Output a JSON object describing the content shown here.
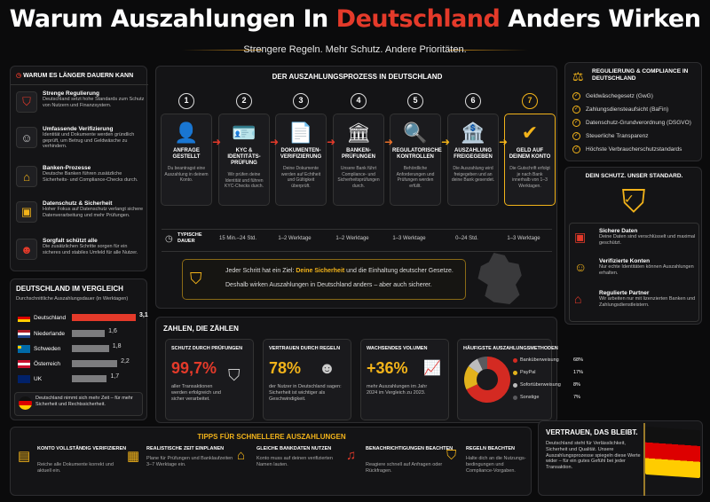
{
  "header": {
    "title_a": "Warum Auszahlungen In ",
    "title_b": "Deutschland",
    "title_c": " Anders Wirken",
    "subtitle": "Strengere Regeln. Mehr Schutz. Andere Prioritäten."
  },
  "left": {
    "title": "WARUM ES LÄNGER DAUERN KANN",
    "items": [
      {
        "icon": "shield-icon",
        "title": "Strenge Regulierung",
        "text": "Deutschland setzt hohe Standards zum Schutz von Nutzern und Finanzsystem."
      },
      {
        "icon": "id-check-icon",
        "title": "Umfassende Verifizierung",
        "text": "Identität und Dokumente werden gründlich geprüft, um Betrug und Geldwäsche zu verhindern."
      },
      {
        "icon": "bank-icon",
        "title": "Banken-Prozesse",
        "text": "Deutsche Banken führen zusätzliche Sicherheits- und Compliance-Checks durch."
      },
      {
        "icon": "lock-icon",
        "title": "Datenschutz & Sicherheit",
        "text": "Hoher Fokus auf Datenschutz verlangt sichere Datenverarbeitung und mehr Prüfungen."
      },
      {
        "icon": "people-icon",
        "title": "Sorgfalt schützt alle",
        "text": "Die zusätzlichen Schritte sorgen für ein sicheres und stabiles Umfeld für alle Nutzer."
      }
    ]
  },
  "process": {
    "title": "DER AUSZAHLUNGSPROZESS IN DEUTSCHLAND",
    "time_label": "TYPISCHE DAUER",
    "steps": [
      {
        "num": "1",
        "label": "ANFRAGE GESTELLT",
        "text": "Du beantragst eine Auszahlung in deinem Konto.",
        "time": "",
        "icon": "user-icon"
      },
      {
        "num": "2",
        "label": "KYC & IDENTITÄTS-PRÜFUNG",
        "text": "Wir prüfen deine Identität und führen KYC-Checks durch.",
        "time": "15 Min.–24 Std.",
        "icon": "id-card-icon"
      },
      {
        "num": "3",
        "label": "DOKUMENTEN-VERIFIZIERUNG",
        "text": "Deine Dokumente werden auf Echtheit und Gültigkeit überprüft.",
        "time": "1–2 Werktage",
        "icon": "document-icon"
      },
      {
        "num": "4",
        "label": "BANKEN-PRÜFUNGEN",
        "text": "Unsere Bank führt Compliance- und Sicherheitsprüfungen durch.",
        "time": "1–2 Werktage",
        "icon": "bank-icon"
      },
      {
        "num": "5",
        "label": "REGULATORISCHE KONTROLLEN",
        "text": "Behördliche Anforderungen und Prüfungen werden erfüllt.",
        "time": "1–3 Werktage",
        "icon": "search-icon"
      },
      {
        "num": "6",
        "label": "AUSZAHLUNG FREIGEGEBEN",
        "text": "Die Auszahlung wird freigegeben und an deine Bank gesendet.",
        "time": "0–24 Std.",
        "icon": "bank-check-icon"
      },
      {
        "num": "7",
        "label": "GELD AUF DEINEM KONTO",
        "text": "Die Gutschrift erfolgt je nach Bank innerhalb von 1–3 Werktagen.",
        "time": "1–3 Werktage",
        "icon": "check-circle-icon"
      }
    ],
    "note_a": "Jeder Schritt hat ein Ziel: ",
    "note_b": "Deine Sicherheit",
    "note_c": " und die Einhaltung deutscher Gesetze.",
    "note_line2": "Deshalb wirken Auszahlungen in Deutschland anders – aber auch sicherer."
  },
  "compare": {
    "title": "DEUTSCHLAND IM VERGLEICH",
    "subtitle": "Durchschnittliche Auszahlungsdauer (in Werktagen)",
    "rows": [
      {
        "country": "Deutschland",
        "value": 3.1,
        "label": "3,1",
        "color": "#e43a2a"
      },
      {
        "country": "Niederlande",
        "value": 1.6,
        "label": "1,6",
        "color": "#7c7c7e"
      },
      {
        "country": "Schweden",
        "value": 1.8,
        "label": "1,8",
        "color": "#7c7c7e"
      },
      {
        "country": "Österreich",
        "value": 2.2,
        "label": "2,2",
        "color": "#7c7c7e"
      },
      {
        "country": "UK",
        "value": 1.7,
        "label": "1,7",
        "color": "#7c7c7e"
      }
    ],
    "footer": "Deutschland nimmt sich mehr Zeit – für mehr Sicherheit und Rechtssicherheit."
  },
  "stats": {
    "title": "ZAHLEN, DIE ZÄHLEN",
    "s1": {
      "title": "SCHUTZ DURCH PRÜFUNGEN",
      "value": "99,7%",
      "text": "aller Transaktionen werden erfolgreich und sicher verarbeitet."
    },
    "s2": {
      "title": "VERTRAUEN DURCH REGELN",
      "value": "78%",
      "text": "der Nutzer in Deutschland sagen: Sicherheit ist wichtiger als Geschwindigkeit."
    },
    "s3": {
      "title": "WACHSENDES VOLUMEN",
      "value": "+36%",
      "text": "mehr Auszahlungen im Jahr 2024 im Vergleich zu 2023."
    },
    "s4": {
      "title": "HÄUFIGSTE AUSZAHLUNGSMETHODEN"
    }
  },
  "chart_data": {
    "type": "pie",
    "categories": [
      "Banküberweisung",
      "PayPal",
      "Sofortüberweisung",
      "Sonstige"
    ],
    "values": [
      68,
      17,
      8,
      7
    ],
    "labels": [
      "68%",
      "17%",
      "8%",
      "7%"
    ],
    "colors": [
      "#d42a22",
      "#e2b21c",
      "#bcbcbc",
      "#5a5a5e"
    ]
  },
  "tips": {
    "title": "TIPPS FÜR SCHNELLERE AUSZAHLUNGEN",
    "items": [
      {
        "icon": "id-card-icon",
        "title": "KONTO VOLLSTÄNDIG VERIFIZIEREN",
        "text": "Reiche alle Dokumente korrekt und aktuell ein."
      },
      {
        "icon": "calendar-icon",
        "title": "REALISTISCHE ZEIT EINPLANEN",
        "text": "Plane für Prüfungen und Banklaufzeiten 3–7 Werktage ein."
      },
      {
        "icon": "bank-icon",
        "title": "GLEICHE BANKDATEN NUTZEN",
        "text": "Konto muss auf deinen verifizierten Namen lauten."
      },
      {
        "icon": "bell-icon",
        "title": "BENACHRICHTIGUNGEN BEACHTEN",
        "text": "Reagiere schnell auf Anfragen oder Rückfragen."
      },
      {
        "icon": "shield-check-icon",
        "title": "REGELN BEACHTEN",
        "text": "Halte dich an die Nutzungs-bedingungen und Compliance-Vorgaben."
      }
    ]
  },
  "reg": {
    "title": "REGULIERUNG & COMPLIANCE IN DEUTSCHLAND",
    "items": [
      "Geldwäschegesetz (GwG)",
      "Zahlungsdiensteaufsicht (BaFin)",
      "Datenschutz-Grundverordnung (DSGVO)",
      "Steuerliche Transparenz",
      "Höchste Verbraucherschutzstandards"
    ]
  },
  "protect": {
    "title": "DEIN SCHUTZ. UNSER STANDARD.",
    "items": [
      {
        "icon": "lock-icon",
        "title": "Sichere Daten",
        "text": "Deine Daten sind verschlüsselt und maximal geschützt."
      },
      {
        "icon": "verified-user-icon",
        "title": "Verifizierte Konten",
        "text": "Nur echte Identitäten können Auszahlungen erhalten."
      },
      {
        "icon": "bank-icon",
        "title": "Regulierte Partner",
        "text": "Wir arbeiten nur mit lizenzierten Banken und Zahlungsdienstleistern."
      }
    ]
  },
  "trust": {
    "title": "VERTRAUEN, DAS BLEIBT.",
    "text": "Deutschland steht für Verlässlichkeit, Sicherheit und Qualität. Unsere Auszahlungsprozesse spiegeln diese Werte wider – für ein gutes Gefühl bei jeder Transaktion."
  }
}
